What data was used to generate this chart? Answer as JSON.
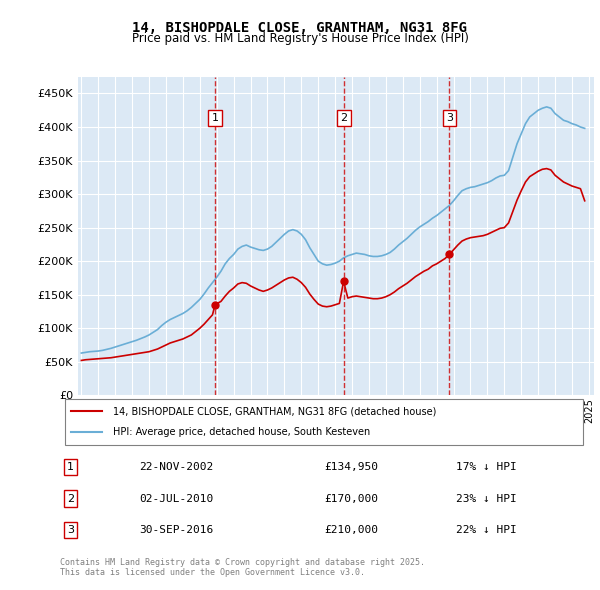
{
  "title": "14, BISHOPDALE CLOSE, GRANTHAM, NG31 8FG",
  "subtitle": "Price paid vs. HM Land Registry's House Price Index (HPI)",
  "ylabel_prefix": "£",
  "background_color": "#dce9f5",
  "plot_bg_color": "#dce9f5",
  "grid_color": "#ffffff",
  "hpi_color": "#6aaed6",
  "price_color": "#cc0000",
  "vline_color": "#cc0000",
  "ylim": [
    0,
    475000
  ],
  "yticks": [
    0,
    50000,
    100000,
    150000,
    200000,
    250000,
    300000,
    350000,
    400000,
    450000
  ],
  "transactions": [
    {
      "num": 1,
      "date": "22-NOV-2002",
      "price": 134950,
      "pct": "17%",
      "direction": "↓"
    },
    {
      "num": 2,
      "date": "02-JUL-2010",
      "price": 170000,
      "pct": "23%",
      "direction": "↓"
    },
    {
      "num": 3,
      "date": "30-SEP-2016",
      "price": 210000,
      "pct": "22%",
      "direction": "↓"
    }
  ],
  "transaction_dates_decimal": [
    2002.9,
    2010.5,
    2016.75
  ],
  "transaction_prices": [
    134950,
    170000,
    210000
  ],
  "legend_property": "14, BISHOPDALE CLOSE, GRANTHAM, NG31 8FG (detached house)",
  "legend_hpi": "HPI: Average price, detached house, South Kesteven",
  "footer": "Contains HM Land Registry data © Crown copyright and database right 2025.\nThis data is licensed under the Open Government Licence v3.0.",
  "hpi_x": [
    1995.0,
    1995.25,
    1995.5,
    1995.75,
    1996.0,
    1996.25,
    1996.5,
    1996.75,
    1997.0,
    1997.25,
    1997.5,
    1997.75,
    1998.0,
    1998.25,
    1998.5,
    1998.75,
    1999.0,
    1999.25,
    1999.5,
    1999.75,
    2000.0,
    2000.25,
    2000.5,
    2000.75,
    2001.0,
    2001.25,
    2001.5,
    2001.75,
    2002.0,
    2002.25,
    2002.5,
    2002.75,
    2003.0,
    2003.25,
    2003.5,
    2003.75,
    2004.0,
    2004.25,
    2004.5,
    2004.75,
    2005.0,
    2005.25,
    2005.5,
    2005.75,
    2006.0,
    2006.25,
    2006.5,
    2006.75,
    2007.0,
    2007.25,
    2007.5,
    2007.75,
    2008.0,
    2008.25,
    2008.5,
    2008.75,
    2009.0,
    2009.25,
    2009.5,
    2009.75,
    2010.0,
    2010.25,
    2010.5,
    2010.75,
    2011.0,
    2011.25,
    2011.5,
    2011.75,
    2012.0,
    2012.25,
    2012.5,
    2012.75,
    2013.0,
    2013.25,
    2013.5,
    2013.75,
    2014.0,
    2014.25,
    2014.5,
    2014.75,
    2015.0,
    2015.25,
    2015.5,
    2015.75,
    2016.0,
    2016.25,
    2016.5,
    2016.75,
    2017.0,
    2017.25,
    2017.5,
    2017.75,
    2018.0,
    2018.25,
    2018.5,
    2018.75,
    2019.0,
    2019.25,
    2019.5,
    2019.75,
    2020.0,
    2020.25,
    2020.5,
    2020.75,
    2021.0,
    2021.25,
    2021.5,
    2021.75,
    2022.0,
    2022.25,
    2022.5,
    2022.75,
    2023.0,
    2023.25,
    2023.5,
    2023.75,
    2024.0,
    2024.25,
    2024.5,
    2024.75
  ],
  "hpi_y": [
    63000,
    64000,
    65000,
    65500,
    66000,
    67000,
    68500,
    70000,
    72000,
    74000,
    76000,
    78000,
    80000,
    82000,
    84500,
    87000,
    90000,
    94000,
    98000,
    104000,
    109000,
    113000,
    116000,
    119000,
    122000,
    126000,
    131000,
    137000,
    143000,
    151000,
    160000,
    168000,
    176000,
    185000,
    196000,
    204000,
    210000,
    218000,
    222000,
    224000,
    221000,
    219000,
    217000,
    216000,
    218000,
    222000,
    228000,
    234000,
    240000,
    245000,
    247000,
    245000,
    240000,
    232000,
    220000,
    210000,
    200000,
    196000,
    194000,
    195000,
    197000,
    200000,
    205000,
    208000,
    210000,
    212000,
    211000,
    210000,
    208000,
    207000,
    207000,
    208000,
    210000,
    213000,
    218000,
    224000,
    229000,
    234000,
    240000,
    246000,
    251000,
    255000,
    259000,
    264000,
    268000,
    273000,
    278000,
    283000,
    290000,
    298000,
    305000,
    308000,
    310000,
    311000,
    313000,
    315000,
    317000,
    320000,
    324000,
    327000,
    328000,
    335000,
    355000,
    375000,
    390000,
    405000,
    415000,
    420000,
    425000,
    428000,
    430000,
    428000,
    420000,
    415000,
    410000,
    408000,
    405000,
    403000,
    400000,
    398000
  ],
  "price_x": [
    1995.0,
    1995.25,
    1995.5,
    1995.75,
    1996.0,
    1996.25,
    1996.5,
    1996.75,
    1997.0,
    1997.25,
    1997.5,
    1997.75,
    1998.0,
    1998.25,
    1998.5,
    1998.75,
    1999.0,
    1999.25,
    1999.5,
    1999.75,
    2000.0,
    2000.25,
    2000.5,
    2000.75,
    2001.0,
    2001.25,
    2001.5,
    2001.75,
    2002.0,
    2002.25,
    2002.5,
    2002.75,
    2002.9,
    2003.25,
    2003.5,
    2003.75,
    2004.0,
    2004.25,
    2004.5,
    2004.75,
    2005.0,
    2005.25,
    2005.5,
    2005.75,
    2006.0,
    2006.25,
    2006.5,
    2006.75,
    2007.0,
    2007.25,
    2007.5,
    2007.75,
    2008.0,
    2008.25,
    2008.5,
    2008.75,
    2009.0,
    2009.25,
    2009.5,
    2009.75,
    2010.0,
    2010.25,
    2010.5,
    2010.75,
    2011.0,
    2011.25,
    2011.5,
    2011.75,
    2012.0,
    2012.25,
    2012.5,
    2012.75,
    2013.0,
    2013.25,
    2013.5,
    2013.75,
    2014.0,
    2014.25,
    2014.5,
    2014.75,
    2015.0,
    2015.25,
    2015.5,
    2015.75,
    2016.0,
    2016.25,
    2016.5,
    2016.75,
    2017.0,
    2017.25,
    2017.5,
    2017.75,
    2018.0,
    2018.25,
    2018.5,
    2018.75,
    2019.0,
    2019.25,
    2019.5,
    2019.75,
    2020.0,
    2020.25,
    2020.5,
    2020.75,
    2021.0,
    2021.25,
    2021.5,
    2021.75,
    2022.0,
    2022.25,
    2022.5,
    2022.75,
    2023.0,
    2023.25,
    2023.5,
    2023.75,
    2024.0,
    2024.25,
    2024.5,
    2024.75
  ],
  "price_y": [
    52000,
    53000,
    53500,
    54000,
    54500,
    55000,
    55500,
    56000,
    57000,
    58000,
    59000,
    60000,
    61000,
    62000,
    63000,
    64000,
    65000,
    67000,
    69000,
    72000,
    75000,
    78000,
    80000,
    82000,
    84000,
    87000,
    90000,
    95000,
    100000,
    106000,
    113000,
    120000,
    134950,
    140000,
    148000,
    155000,
    160000,
    166000,
    168000,
    167000,
    163000,
    160000,
    157000,
    155000,
    157000,
    160000,
    164000,
    168000,
    172000,
    175000,
    176000,
    173000,
    168000,
    161000,
    151000,
    143000,
    136000,
    133000,
    132000,
    133000,
    135000,
    137000,
    170000,
    145000,
    147000,
    148000,
    147000,
    146000,
    145000,
    144000,
    144000,
    145000,
    147000,
    150000,
    154000,
    159000,
    163000,
    167000,
    172000,
    177000,
    181000,
    185000,
    188000,
    193000,
    196000,
    200000,
    204000,
    210000,
    217000,
    224000,
    230000,
    233000,
    235000,
    236000,
    237000,
    238000,
    240000,
    243000,
    246000,
    249000,
    250000,
    257000,
    274000,
    291000,
    305000,
    318000,
    326000,
    330000,
    334000,
    337000,
    338000,
    336000,
    328000,
    323000,
    318000,
    315000,
    312000,
    310000,
    308000,
    290000
  ],
  "xtick_years": [
    1995,
    1996,
    1997,
    1998,
    1999,
    2000,
    2001,
    2002,
    2003,
    2004,
    2005,
    2006,
    2007,
    2008,
    2009,
    2010,
    2011,
    2012,
    2013,
    2014,
    2015,
    2016,
    2017,
    2018,
    2019,
    2020,
    2021,
    2022,
    2023,
    2024,
    2025
  ]
}
